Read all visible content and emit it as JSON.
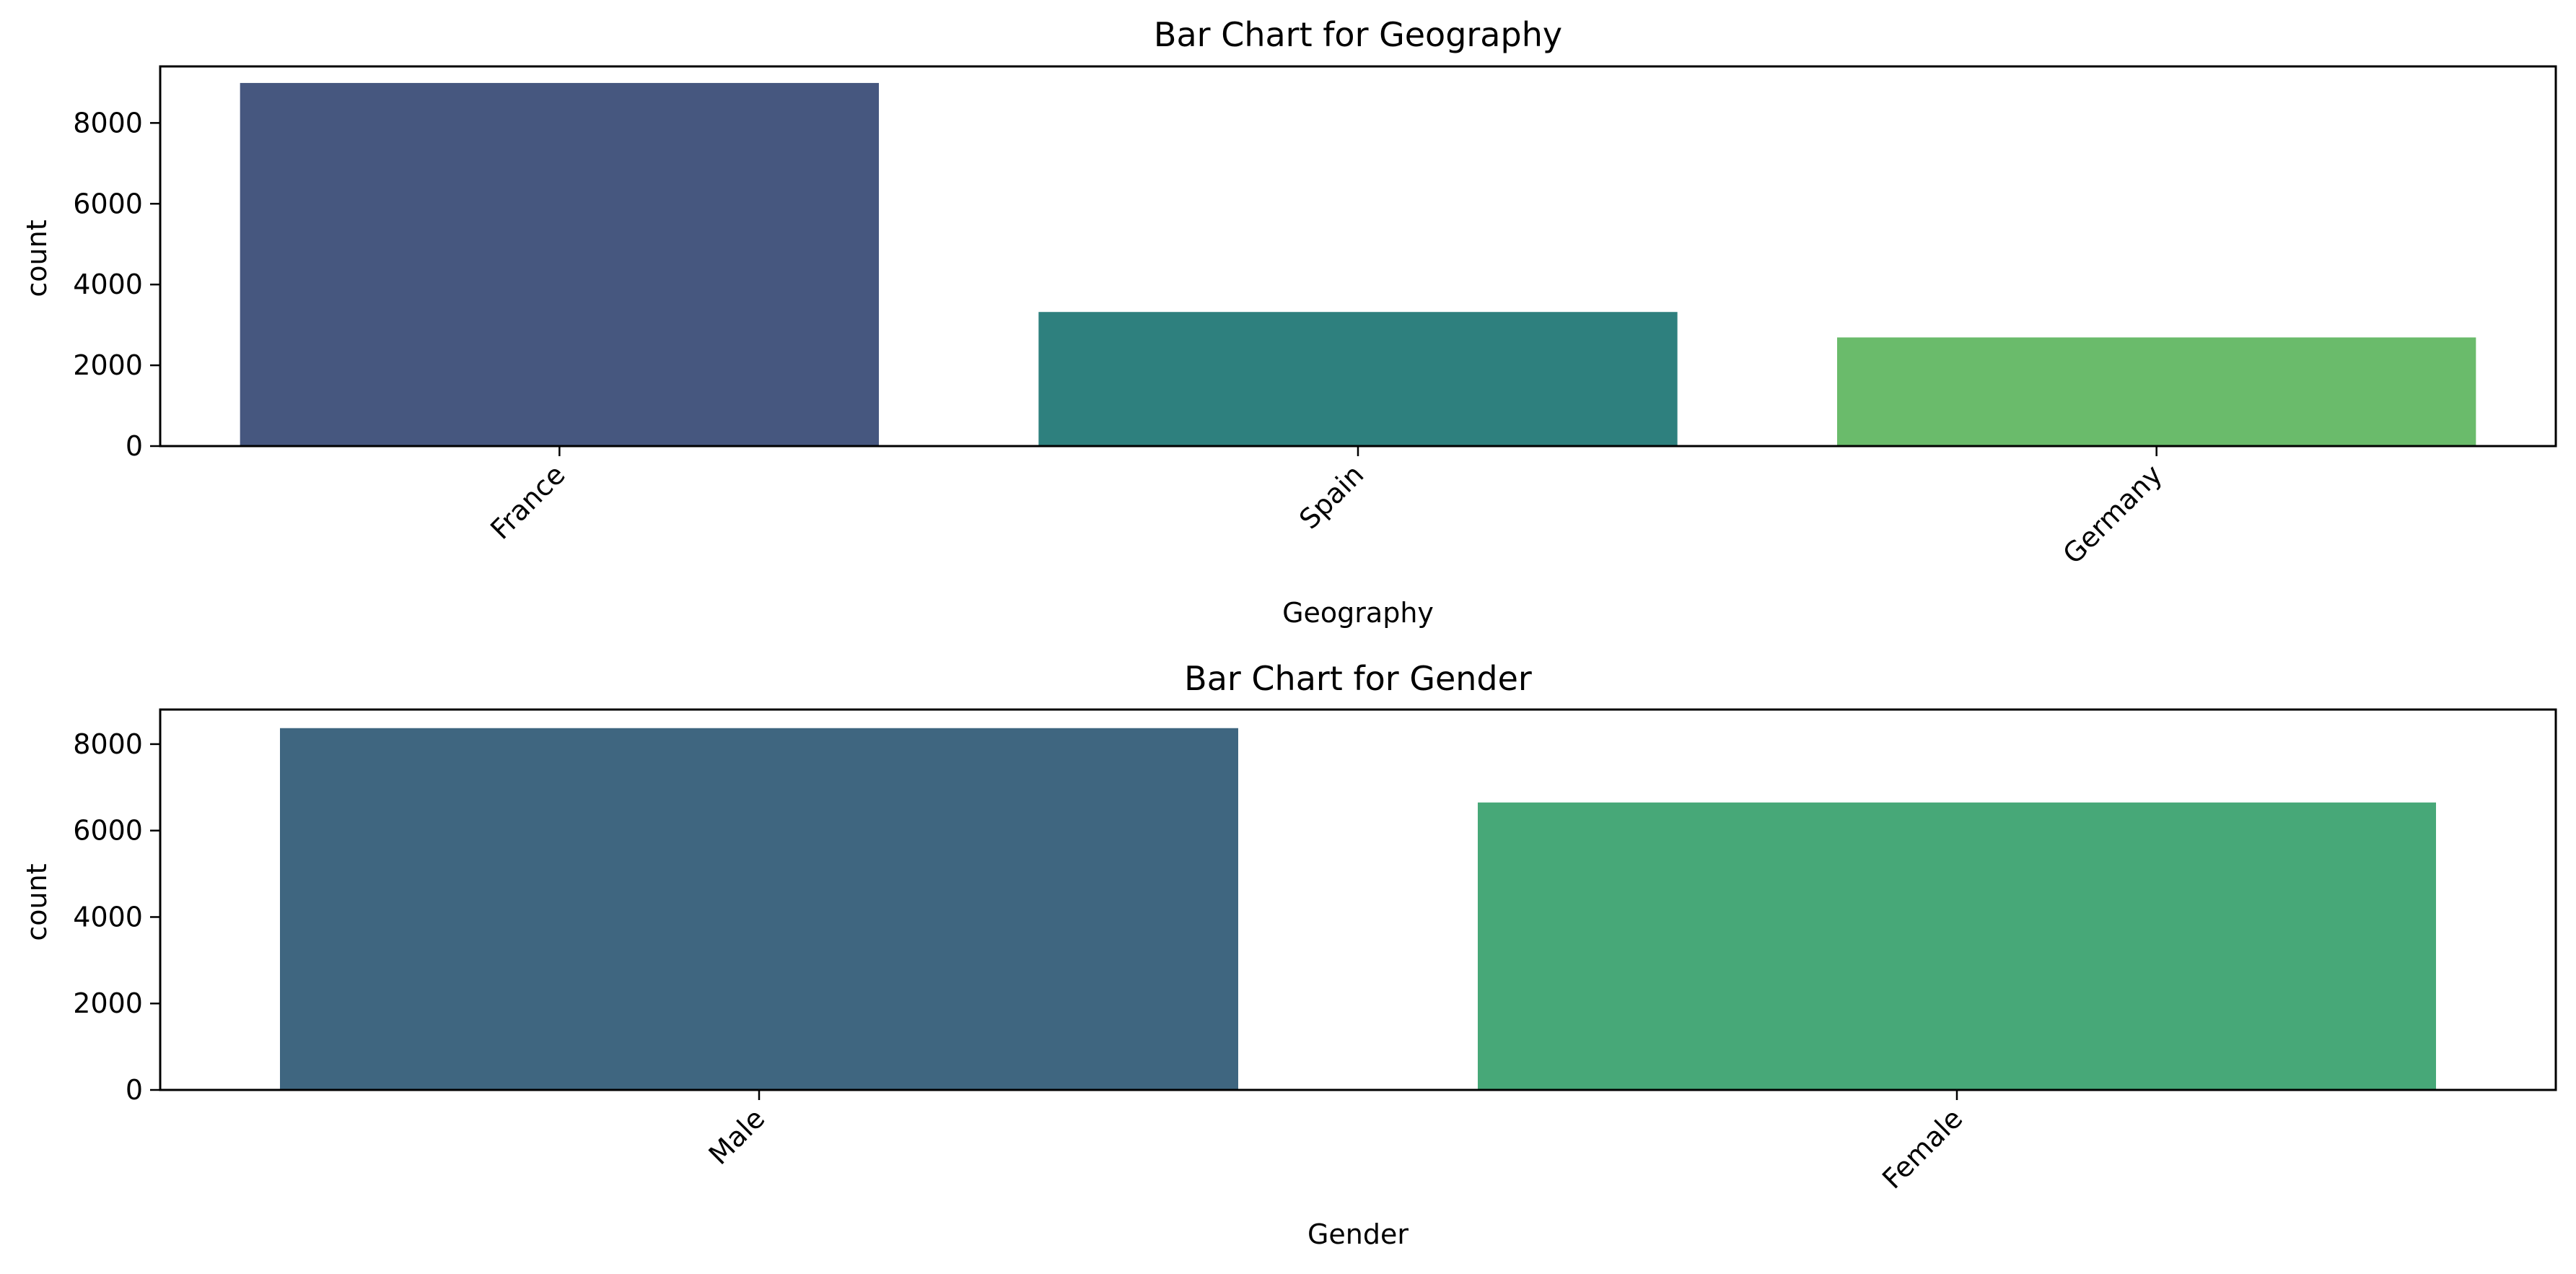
{
  "chart_data": [
    {
      "type": "bar",
      "title": "Bar Chart for Geography",
      "xlabel": "Geography",
      "ylabel": "count",
      "categories": [
        "France",
        "Spain",
        "Germany"
      ],
      "values": [
        8990,
        3320,
        2690
      ],
      "colors": [
        "#46577f",
        "#2e807e",
        "#6abb6b"
      ],
      "ylim": [
        0,
        9400
      ],
      "yticks": [
        0,
        2000,
        4000,
        6000,
        8000
      ],
      "xtick_rotation": 45,
      "grid": false,
      "legend": null
    },
    {
      "type": "bar",
      "title": "Bar Chart for Gender",
      "xlabel": "Gender",
      "ylabel": "count",
      "categories": [
        "Male",
        "Female"
      ],
      "values": [
        8370,
        6650
      ],
      "colors": [
        "#3f6680",
        "#47a878"
      ],
      "ylim": [
        0,
        8800
      ],
      "yticks": [
        0,
        2000,
        4000,
        6000,
        8000
      ],
      "xtick_rotation": 45,
      "grid": false,
      "legend": null
    }
  ]
}
